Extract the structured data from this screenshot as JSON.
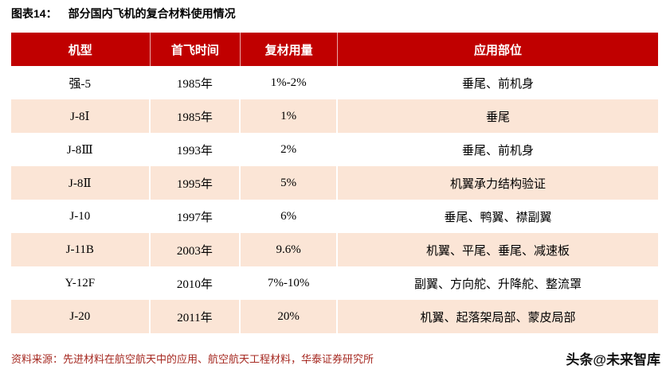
{
  "page": {
    "figure_label": "图表14：",
    "figure_title": "部分国内飞机的复合材料使用情况",
    "source": "资料来源：先进材料在航空航天中的应用、航空航天工程材料，华泰证券研究所",
    "watermark": "头条@未来智库"
  },
  "table": {
    "headers": [
      "机型",
      "首飞时间",
      "复材用量",
      "应用部位"
    ],
    "rows": [
      [
        "强-5",
        "1985年",
        "1%-2%",
        "垂尾、前机身"
      ],
      [
        "J-8Ⅰ",
        "1985年",
        "1%",
        "垂尾"
      ],
      [
        "J-8Ⅲ",
        "1993年",
        "2%",
        "垂尾、前机身"
      ],
      [
        "J-8Ⅱ",
        "1995年",
        "5%",
        "机翼承力结构验证"
      ],
      [
        "J-10",
        "1997年",
        "6%",
        "垂尾、鸭翼、襟副翼"
      ],
      [
        "J-11B",
        "2003年",
        "9.6%",
        "机翼、平尾、垂尾、减速板"
      ],
      [
        "Y-12F",
        "2010年",
        "7%-10%",
        "副翼、方向舵、升降舵、整流罩"
      ],
      [
        "J-20",
        "2011年",
        "20%",
        "机翼、起落架局部、蒙皮局部"
      ]
    ]
  },
  "chart_data": {
    "type": "table",
    "title": "部分国内飞机的复合材料使用情况",
    "columns": [
      "机型",
      "首飞时间",
      "复材用量",
      "应用部位"
    ],
    "rows": [
      [
        "强-5",
        "1985年",
        "1%-2%",
        "垂尾、前机身"
      ],
      [
        "J-8Ⅰ",
        "1985年",
        "1%",
        "垂尾"
      ],
      [
        "J-8Ⅲ",
        "1993年",
        "2%",
        "垂尾、前机身"
      ],
      [
        "J-8Ⅱ",
        "1995年",
        "5%",
        "机翼承力结构验证"
      ],
      [
        "J-10",
        "1997年",
        "6%",
        "垂尾、鸭翼、襟副翼"
      ],
      [
        "J-11B",
        "2003年",
        "9.6%",
        "机翼、平尾、垂尾、减速板"
      ],
      [
        "Y-12F",
        "2010年",
        "7%-10%",
        "副翼、方向舵、升降舵、整流罩"
      ],
      [
        "J-20",
        "2011年",
        "20%",
        "机翼、起落架局部、蒙皮局部"
      ]
    ]
  },
  "colors": {
    "header_bg": "#C00000",
    "row_alt_bg": "#FBE5D6",
    "source_color": "#A62A22"
  }
}
